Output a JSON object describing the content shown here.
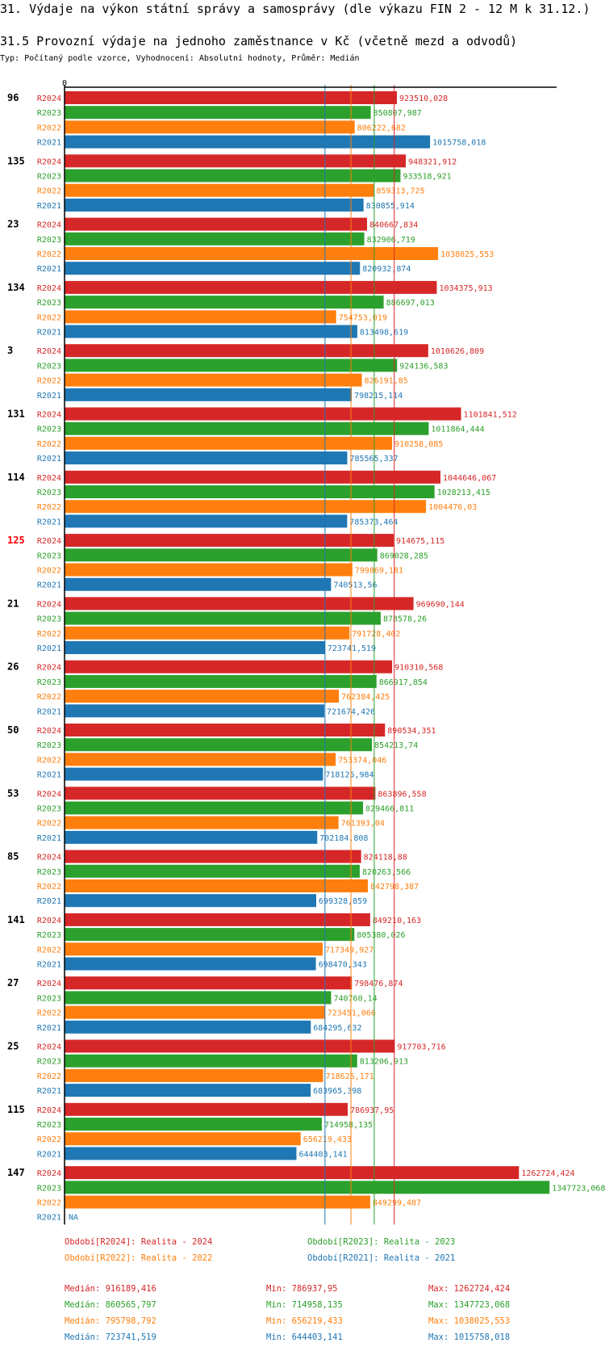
{
  "header": {
    "title": "31. Výdaje na výkon státní správy a samosprávy (dle výkazu FIN 2 - 12 M k 31.12.)",
    "subtitle": "31.5 Provozní výdaje na jednoho zaměstnance v Kč (včetně mezd a odvodů)",
    "meta": "Typ: Počítaný podle vzorce, Vyhodnocení: Absolutní hodnoty, Průměr: Medián"
  },
  "colors": {
    "R2024": "#d62728",
    "R2023": "#2ca02c",
    "R2022": "#ff7f0e",
    "R2021": "#1f77b4",
    "highlight": "#ff0000"
  },
  "chart_data": {
    "type": "bar",
    "orientation": "horizontal",
    "title": "31.5 Provozní výdaje na jednoho zaměstnance v Kč (včetně mezd a odvodů)",
    "xlabel": "",
    "ylabel": "",
    "x_tick_labels": [
      "0"
    ],
    "xlim": [
      0,
      1350000
    ],
    "grid": false,
    "series_names": [
      "R2024",
      "R2023",
      "R2022",
      "R2021"
    ],
    "highlighted_category": "125",
    "categories": [
      "96",
      "135",
      "23",
      "134",
      "3",
      "131",
      "114",
      "125",
      "21",
      "26",
      "50",
      "53",
      "85",
      "141",
      "27",
      "25",
      "115",
      "147"
    ],
    "series": [
      {
        "name": "R2024",
        "values": [
          923510.028,
          948321.912,
          840667.834,
          1034375.913,
          1010626.809,
          1101841.512,
          1044646.067,
          914675.115,
          969690.144,
          910310.568,
          890534.351,
          863896.558,
          824118.88,
          849210.163,
          798476.874,
          917703.716,
          786937.95,
          1262724.424
        ],
        "labels": [
          "923510,028",
          "948321,912",
          "840667,834",
          "1034375,913",
          "1010626,809",
          "1101841,512",
          "1044646,067",
          "914675,115",
          "969690,144",
          "910310,568",
          "890534,351",
          "863896,558",
          "824118,88",
          "849210,163",
          "798476,874",
          "917703,716",
          "786937,95",
          "1262724,424"
        ]
      },
      {
        "name": "R2023",
        "values": [
          850807.987,
          933518.921,
          832906.719,
          886697.013,
          924136.583,
          1011864.444,
          1028213.415,
          869028.285,
          878578.26,
          866917.854,
          854213.74,
          829466.811,
          820263.566,
          805380.026,
          740760.14,
          813206.913,
          714958.135,
          1347723.068
        ],
        "labels": [
          "850807,987",
          "933518,921",
          "832906,719",
          "886697,013",
          "924136,583",
          "1011864,444",
          "1028213,415",
          "869028,285",
          "878578,26",
          "866917,854",
          "854213,74",
          "829466,811",
          "820263,566",
          "805380,026",
          "740760,14",
          "813206,913",
          "714958,135",
          "1347723,068"
        ]
      },
      {
        "name": "R2022",
        "values": [
          806222.682,
          859313.725,
          1038025.553,
          754753.019,
          826191.85,
          910258.085,
          1004476.03,
          799869.181,
          791728.402,
          762384.425,
          753374.046,
          761393.04,
          842798.387,
          717349.927,
          723451.066,
          718625.171,
          656219.433,
          849299.487
        ],
        "labels": [
          "806222,682",
          "859313,725",
          "1038025,553",
          "754753,019",
          "826191,85",
          "910258,085",
          "1004476,03",
          "799869,181",
          "791728,402",
          "762384,425",
          "753374,046",
          "761393,04",
          "842798,387",
          "717349,927",
          "723451,066",
          "718625,171",
          "656219,433",
          "849299,487"
        ]
      },
      {
        "name": "R2021",
        "values": [
          1015758.018,
          830855.914,
          820932.874,
          813498.619,
          798215.114,
          785565.337,
          785373.464,
          740513.56,
          723741.519,
          721674.426,
          718125.984,
          702184.808,
          699328.859,
          698470.343,
          684295.632,
          683965.398,
          644403.141,
          null
        ],
        "labels": [
          "1015758,018",
          "830855,914",
          "820932,874",
          "813498,619",
          "798215,114",
          "785565,337",
          "785373,464",
          "740513,56",
          "723741,519",
          "721674,426",
          "718125,984",
          "702184,808",
          "699328,859",
          "698470,343",
          "684295,632",
          "683965,398",
          "644403,141",
          "NA"
        ]
      }
    ],
    "median_lines": [
      {
        "name": "R2021",
        "value": 723741.519
      },
      {
        "name": "R2022",
        "value": 795798.792
      },
      {
        "name": "R2023",
        "value": 860565.797
      },
      {
        "name": "R2024",
        "value": 916189.416
      }
    ]
  },
  "legend": [
    {
      "key": "R2024",
      "text": "Období[R2024]: Realita - 2024"
    },
    {
      "key": "R2023",
      "text": "Období[R2023]: Realita - 2023"
    },
    {
      "key": "R2022",
      "text": "Období[R2022]: Realita - 2022"
    },
    {
      "key": "R2021",
      "text": "Období[R2021]: Realita - 2021"
    }
  ],
  "stats": [
    {
      "key": "R2024",
      "median": "Medián: 916189,416",
      "min": "Min: 786937,95",
      "max": "Max: 1262724,424"
    },
    {
      "key": "R2023",
      "median": "Medián: 860565,797",
      "min": "Min: 714958,135",
      "max": "Max: 1347723,068"
    },
    {
      "key": "R2022",
      "median": "Medián: 795798,792",
      "min": "Min: 656219,433",
      "max": "Max: 1038025,553"
    },
    {
      "key": "R2021",
      "median": "Medián: 723741,519",
      "min": "Min: 644403,141",
      "max": "Max: 1015758,018"
    }
  ]
}
